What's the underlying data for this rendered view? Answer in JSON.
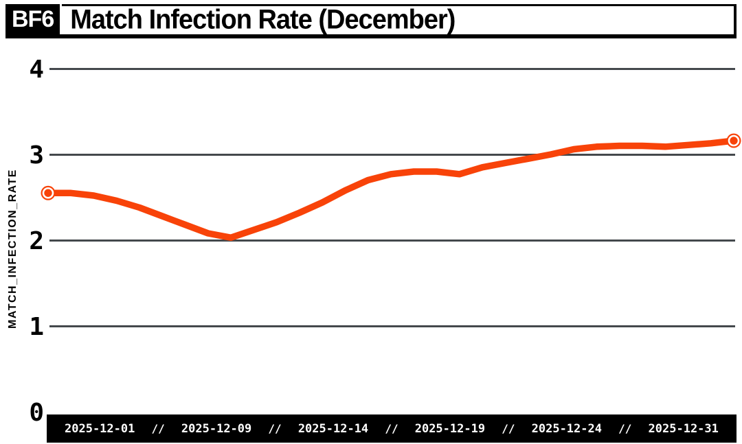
{
  "header": {
    "badge": "BF6",
    "title": "Match Infection Rate (December)"
  },
  "colors": {
    "accent": "#f84309",
    "ink": "#000000",
    "grid": "#44484c",
    "axis_bar_bg": "#000000",
    "axis_bar_text": "#ffffff",
    "background": "#ffffff"
  },
  "chart_data": {
    "type": "line",
    "title": "Match Infection Rate (December)",
    "badge": "BF6",
    "ylabel": "MATCH_INFECTION_RATE",
    "xlabel": "",
    "ylim": [
      0,
      4
    ],
    "yticks": [
      4,
      3,
      2,
      1,
      0
    ],
    "grid": "horizontal",
    "legend": "none",
    "x_days": [
      1,
      31
    ],
    "xtick_labels": [
      "2025-12-01",
      "2025-12-09",
      "2025-12-14",
      "2025-12-19",
      "2025-12-24",
      "2025-12-31"
    ],
    "xtick_separator": "//",
    "line_color": "#f84309",
    "endpoint_marker": "orange circle with white inner ring on first and last points",
    "series": [
      {
        "name": "MATCH_INFECTION_RATE",
        "color": "#f84309",
        "points": [
          [
            1,
            2.55
          ],
          [
            2,
            2.55
          ],
          [
            3,
            2.52
          ],
          [
            4,
            2.46
          ],
          [
            5,
            2.38
          ],
          [
            6,
            2.28
          ],
          [
            7,
            2.18
          ],
          [
            8,
            2.08
          ],
          [
            9,
            2.03
          ],
          [
            10,
            2.12
          ],
          [
            11,
            2.21
          ],
          [
            12,
            2.32
          ],
          [
            13,
            2.44
          ],
          [
            14,
            2.58
          ],
          [
            15,
            2.7
          ],
          [
            16,
            2.77
          ],
          [
            17,
            2.8
          ],
          [
            18,
            2.8
          ],
          [
            19,
            2.77
          ],
          [
            20,
            2.85
          ],
          [
            21,
            2.9
          ],
          [
            22,
            2.95
          ],
          [
            23,
            3.0
          ],
          [
            24,
            3.06
          ],
          [
            25,
            3.09
          ],
          [
            26,
            3.1
          ],
          [
            27,
            3.1
          ],
          [
            28,
            3.09
          ],
          [
            29,
            3.11
          ],
          [
            30,
            3.13
          ],
          [
            31,
            3.16
          ]
        ]
      }
    ]
  }
}
